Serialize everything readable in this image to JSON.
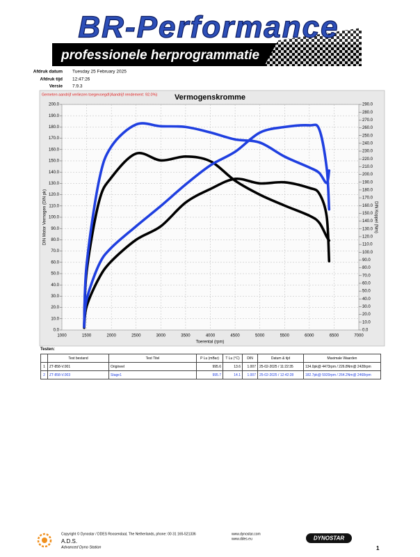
{
  "header": {
    "logo": "BR-Performance",
    "tagline": "professionele herprogrammatie"
  },
  "info": [
    {
      "label": "Afdruk datum",
      "value": "Tuesday 25 February 2025"
    },
    {
      "label": "Afdruk tijd",
      "value": "12:47:26"
    },
    {
      "label": "Versie",
      "value": "7.9.3"
    }
  ],
  "chart_data": {
    "type": "line",
    "title": "Vermogenskromme",
    "annotation": "Gemeten aandrijf verliezen toegevoegd!(Aandrijf rendement: 92.0%)",
    "x_label": "Toerental (rpm)",
    "y_label": "DIN Motor Vermogen (DIN pk)",
    "y2_label": "DIN Koppel (Nm)",
    "x": [
      1450,
      1500,
      1750,
      2000,
      2500,
      3000,
      3500,
      4000,
      4500,
      5000,
      5500,
      6000,
      6200,
      6350,
      6400
    ],
    "series": [
      {
        "color": "#000000",
        "axis": "y",
        "values": [
          2,
          21,
          46,
          61,
          80,
          92,
          113,
          125,
          134,
          130,
          131,
          126,
          121,
          101,
          61
        ]
      },
      {
        "color": "#000000",
        "axis": "y2",
        "values": [
          4,
          75,
          165,
          196,
          226.8,
          218,
          223,
          217,
          192,
          174,
          160,
          147,
          138,
          120,
          115
        ]
      },
      {
        "color": "#1f3fe0",
        "axis": "y",
        "values": [
          5,
          27,
          58,
          73,
          92,
          110,
          129,
          146,
          158,
          175,
          180,
          181.5,
          178,
          144,
          107
        ]
      },
      {
        "color": "#1f3fe0",
        "axis": "y2",
        "values": [
          4,
          84,
          192,
          236,
          264.2,
          262,
          261,
          254,
          245,
          241,
          223,
          209,
          202,
          189,
          205
        ]
      }
    ],
    "xlim": [
      1000,
      7000
    ],
    "xticks": [
      1000,
      1500,
      2000,
      2500,
      3000,
      3500,
      4000,
      4500,
      5000,
      5500,
      6000,
      6500,
      7000
    ],
    "ylim": [
      0,
      200
    ],
    "yticks": [
      {
        "value": 0,
        "label": "0.0"
      },
      {
        "value": 10,
        "label": "10.0"
      },
      {
        "value": 20,
        "label": "20.0"
      },
      {
        "value": 30,
        "label": "30.0"
      },
      {
        "value": 40,
        "label": "40.0"
      },
      {
        "value": 50,
        "label": "50.0"
      },
      {
        "value": 60,
        "label": "60.0"
      },
      {
        "value": 70,
        "label": "70.0"
      },
      {
        "value": 80,
        "label": "80.0"
      },
      {
        "value": 90,
        "label": "90.0"
      },
      {
        "value": 100,
        "label": "100.0"
      },
      {
        "value": 110,
        "label": "110.0"
      },
      {
        "value": 120,
        "label": "120.0"
      },
      {
        "value": 130,
        "label": "130.0"
      },
      {
        "value": 140,
        "label": "140.0"
      },
      {
        "value": 150,
        "label": "150.0"
      },
      {
        "value": 160,
        "label": "160.0"
      },
      {
        "value": 170,
        "label": "170.0"
      },
      {
        "value": 180,
        "label": "180.0"
      },
      {
        "value": 190,
        "label": "190.0"
      },
      {
        "value": 200,
        "label": "200.0"
      }
    ],
    "y2lim": [
      0,
      290
    ],
    "y2ticks": [
      {
        "value": 0,
        "label": "0.0"
      },
      {
        "value": 10,
        "label": "10.0"
      },
      {
        "value": 20,
        "label": "20.0"
      },
      {
        "value": 30,
        "label": "30.0"
      },
      {
        "value": 40,
        "label": "40.0"
      },
      {
        "value": 50,
        "label": "50.0"
      },
      {
        "value": 60,
        "label": "60.0"
      },
      {
        "value": 70,
        "label": "70.0"
      },
      {
        "value": 80,
        "label": "80.0"
      },
      {
        "value": 90,
        "label": "90.0"
      },
      {
        "value": 100,
        "label": "100.0"
      },
      {
        "value": 110,
        "label": "110.0"
      },
      {
        "value": 120,
        "label": "120.0"
      },
      {
        "value": 130,
        "label": "130.0"
      },
      {
        "value": 140,
        "label": "140.0"
      },
      {
        "value": 150,
        "label": "150.0"
      },
      {
        "value": 160,
        "label": "160.0"
      },
      {
        "value": 170,
        "label": "170.0"
      },
      {
        "value": 180,
        "label": "180.0"
      },
      {
        "value": 190,
        "label": "190.0"
      },
      {
        "value": 200,
        "label": "200.0"
      },
      {
        "value": 210,
        "label": "210.0"
      },
      {
        "value": 220,
        "label": "220.0"
      },
      {
        "value": 230,
        "label": "230.0"
      },
      {
        "value": 240,
        "label": "240.0"
      },
      {
        "value": 250,
        "label": "250.0"
      },
      {
        "value": 260,
        "label": "260.0"
      },
      {
        "value": 270,
        "label": "270.0"
      },
      {
        "value": 280,
        "label": "280.0"
      },
      {
        "value": 290,
        "label": "290.0"
      }
    ],
    "grid": true
  },
  "table": {
    "title": "Testen:",
    "columns": [
      "",
      "Test bestand",
      "Test Titel",
      "P Lu (mBar)",
      "T Lu (°C)",
      "DIN",
      "Datum & tijd",
      "Maximale Waarden"
    ],
    "rows": [
      [
        "1",
        "ZT-858-V.001",
        "Origineel",
        "995.6",
        "13.6",
        "1.007",
        "25-02-2025 / 11:22:35",
        "134.0pk@ 4473rpm / 226.8Nm@ 2428rpm"
      ],
      [
        "2",
        "ZT-858-V.003",
        "Stage1",
        "995.7",
        "14.1",
        "1.007",
        "25-02-2025 / 12:42:28",
        "182.7pk@ 5920rpm / 264.2Nm@ 2468rpm"
      ]
    ]
  },
  "footer": {
    "copyright": "Copyright © Dynostar / DDES Roosendaal, The Netherlands, phone: 00 31 165-521336",
    "links": [
      "www.dynostar.com",
      "www.ddes.eu"
    ],
    "ads": "A.D.S.",
    "ads_sub": "Advanced Dyno Station",
    "brand": "DYNOSTAR",
    "page": "1"
  }
}
